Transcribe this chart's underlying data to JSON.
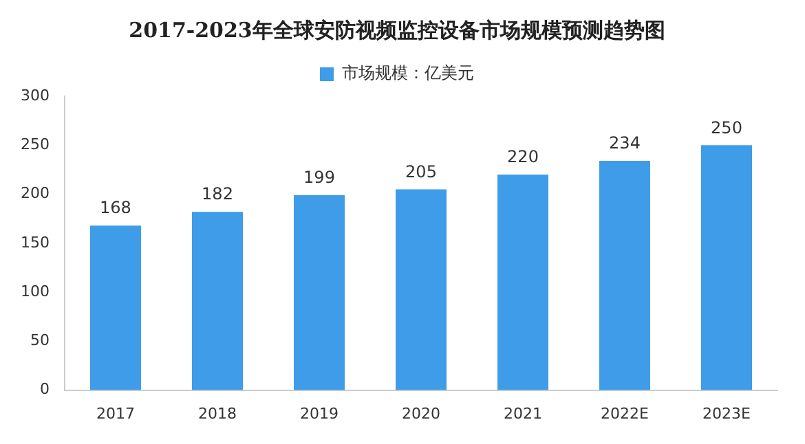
{
  "chart_data": {
    "type": "bar",
    "title": "2017-2023年全球安防视频监控设备市场规模预测趋势图",
    "categories": [
      "2017",
      "2018",
      "2019",
      "2020",
      "2021",
      "2022E",
      "2023E"
    ],
    "series": [
      {
        "name": "市场规模：亿美元",
        "color": "#3f9ce8",
        "values": [
          168,
          182,
          199,
          205,
          220,
          234,
          250
        ]
      }
    ],
    "ylim": [
      0,
      300
    ],
    "yticks": [
      0,
      50,
      100,
      150,
      200,
      250,
      300
    ],
    "grid": false,
    "legend": "top",
    "data_labels": true
  }
}
